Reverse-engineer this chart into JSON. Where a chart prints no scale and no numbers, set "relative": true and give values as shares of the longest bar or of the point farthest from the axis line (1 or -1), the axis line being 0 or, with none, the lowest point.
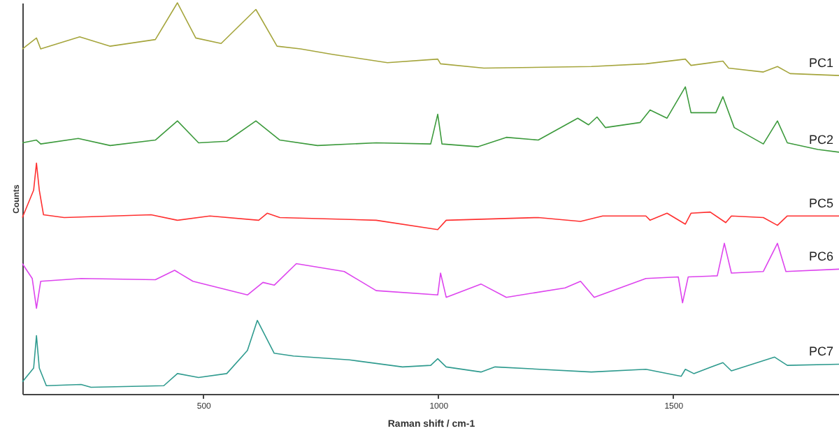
{
  "chart_data": {
    "type": "line",
    "xlabel": "Raman shift / cm-1",
    "ylabel": "Counts",
    "relative": true,
    "tick_labels": "x",
    "grid": false,
    "marker": "none",
    "line_style": "solid",
    "xlim": [
      115,
      1853
    ],
    "xticks": [
      500,
      1000,
      1500
    ],
    "series": [
      {
        "name": "PC1",
        "color": "#a5a53c",
        "x": [
          115,
          145,
          154,
          237,
          302,
          398,
          445,
          484,
          538,
          612,
          657,
          707,
          776,
          892,
          999,
          1005,
          1097,
          1326,
          1442,
          1526,
          1538,
          1606,
          1618,
          1692,
          1722,
          1749,
          1853
        ],
        "values": [
          0.882,
          0.91,
          0.882,
          0.913,
          0.889,
          0.906,
          1.0,
          0.91,
          0.896,
          0.983,
          0.889,
          0.882,
          0.868,
          0.847,
          0.856,
          0.844,
          0.833,
          0.837,
          0.844,
          0.856,
          0.84,
          0.851,
          0.833,
          0.823,
          0.837,
          0.819,
          0.814
        ]
      },
      {
        "name": "PC2",
        "color": "#3c9a3c",
        "x": [
          115,
          145,
          154,
          234,
          302,
          398,
          445,
          490,
          550,
          612,
          663,
          743,
          868,
          984,
          999,
          1008,
          1085,
          1145,
          1213,
          1297,
          1320,
          1338,
          1356,
          1430,
          1451,
          1487,
          1526,
          1538,
          1591,
          1606,
          1630,
          1692,
          1722,
          1743,
          1808,
          1853
        ],
        "values": [
          0.642,
          0.649,
          0.639,
          0.653,
          0.635,
          0.649,
          0.698,
          0.642,
          0.646,
          0.698,
          0.649,
          0.635,
          0.642,
          0.639,
          0.715,
          0.639,
          0.632,
          0.656,
          0.649,
          0.705,
          0.688,
          0.708,
          0.681,
          0.694,
          0.726,
          0.705,
          0.785,
          0.719,
          0.719,
          0.76,
          0.681,
          0.639,
          0.698,
          0.642,
          0.625,
          0.618
        ]
      },
      {
        "name": "PC5",
        "color": "#ff3030",
        "x": [
          115,
          139,
          145,
          151,
          160,
          204,
          389,
          445,
          514,
          618,
          636,
          663,
          868,
          999,
          1017,
          1213,
          1303,
          1350,
          1442,
          1451,
          1487,
          1526,
          1538,
          1579,
          1612,
          1624,
          1692,
          1722,
          1743,
          1853
        ],
        "values": [
          0.451,
          0.521,
          0.59,
          0.521,
          0.458,
          0.451,
          0.458,
          0.444,
          0.455,
          0.444,
          0.462,
          0.451,
          0.444,
          0.42,
          0.444,
          0.451,
          0.441,
          0.455,
          0.455,
          0.444,
          0.462,
          0.434,
          0.462,
          0.465,
          0.438,
          0.455,
          0.451,
          0.431,
          0.455,
          0.455
        ]
      },
      {
        "name": "PC6",
        "color": "#dd44ee",
        "x": [
          115,
          136,
          145,
          154,
          240,
          398,
          439,
          478,
          594,
          627,
          651,
          698,
          800,
          868,
          999,
          1005,
          1017,
          1091,
          1145,
          1270,
          1303,
          1332,
          1442,
          1511,
          1520,
          1532,
          1594,
          1609,
          1624,
          1692,
          1722,
          1740,
          1853
        ],
        "values": [
          0.333,
          0.295,
          0.219,
          0.288,
          0.295,
          0.292,
          0.316,
          0.288,
          0.253,
          0.285,
          0.278,
          0.333,
          0.313,
          0.264,
          0.253,
          0.309,
          0.247,
          0.281,
          0.247,
          0.271,
          0.288,
          0.247,
          0.295,
          0.299,
          0.233,
          0.299,
          0.302,
          0.385,
          0.309,
          0.313,
          0.385,
          0.313,
          0.319
        ]
      },
      {
        "name": "PC7",
        "color": "#2f9b8f",
        "x": [
          115,
          139,
          145,
          151,
          166,
          240,
          261,
          416,
          445,
          490,
          550,
          594,
          615,
          651,
          692,
          811,
          924,
          984,
          999,
          1017,
          1091,
          1121,
          1326,
          1442,
          1517,
          1526,
          1544,
          1606,
          1624,
          1716,
          1743,
          1853
        ],
        "values": [
          0.031,
          0.066,
          0.149,
          0.066,
          0.021,
          0.024,
          0.017,
          0.021,
          0.052,
          0.042,
          0.052,
          0.111,
          0.188,
          0.104,
          0.097,
          0.087,
          0.069,
          0.073,
          0.09,
          0.069,
          0.056,
          0.069,
          0.056,
          0.063,
          0.045,
          0.063,
          0.052,
          0.08,
          0.059,
          0.094,
          0.073,
          0.076
        ]
      }
    ]
  }
}
